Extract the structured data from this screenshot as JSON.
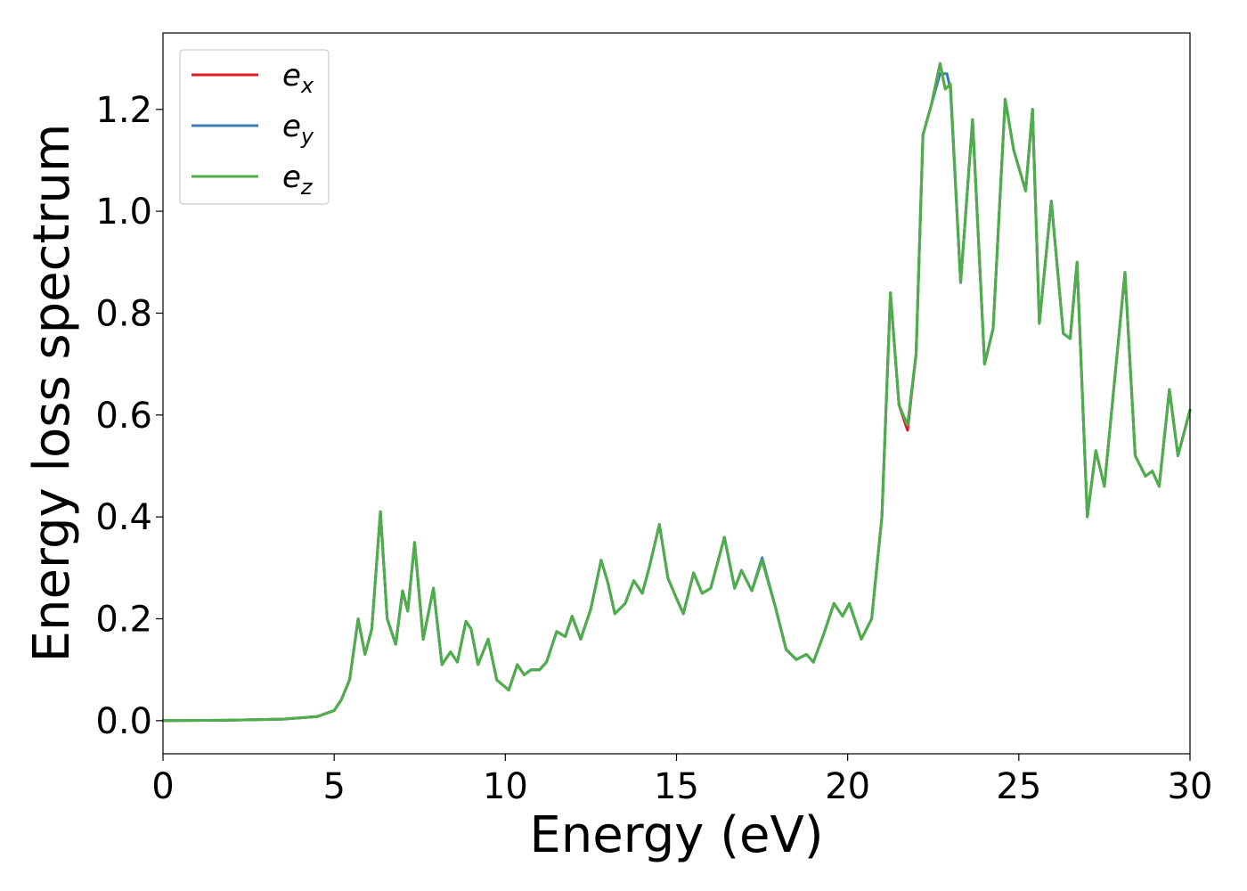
{
  "chart_data": {
    "type": "line",
    "title": "",
    "xlabel": "Energy (eV)",
    "ylabel": "Energy loss spectrum",
    "xlim": [
      0,
      30
    ],
    "ylim": [
      -0.065,
      1.35
    ],
    "xticks": [
      0,
      5,
      10,
      15,
      20,
      25,
      30
    ],
    "xtick_labels": [
      "0",
      "5",
      "10",
      "15",
      "20",
      "25",
      "30"
    ],
    "yticks": [
      0.0,
      0.2,
      0.4,
      0.6,
      0.8,
      1.0,
      1.2
    ],
    "ytick_labels": [
      "0.0",
      "0.2",
      "0.4",
      "0.6",
      "0.8",
      "1.0",
      "1.2"
    ],
    "grid": false,
    "legend_position": "top-left",
    "series": [
      {
        "name": "e",
        "subscript": "x",
        "color": "#e41a1c",
        "points": [
          [
            0,
            0
          ],
          [
            2,
            0.001
          ],
          [
            3.5,
            0.003
          ],
          [
            4.5,
            0.008
          ],
          [
            5.0,
            0.02
          ],
          [
            5.2,
            0.04
          ],
          [
            5.45,
            0.08
          ],
          [
            5.7,
            0.2
          ],
          [
            5.9,
            0.13
          ],
          [
            6.1,
            0.18
          ],
          [
            6.35,
            0.41
          ],
          [
            6.55,
            0.2
          ],
          [
            6.8,
            0.15
          ],
          [
            7.0,
            0.255
          ],
          [
            7.15,
            0.215
          ],
          [
            7.35,
            0.35
          ],
          [
            7.6,
            0.16
          ],
          [
            7.9,
            0.26
          ],
          [
            8.15,
            0.11
          ],
          [
            8.4,
            0.135
          ],
          [
            8.6,
            0.115
          ],
          [
            8.85,
            0.195
          ],
          [
            9.0,
            0.18
          ],
          [
            9.2,
            0.11
          ],
          [
            9.5,
            0.16
          ],
          [
            9.75,
            0.08
          ],
          [
            10.1,
            0.06
          ],
          [
            10.35,
            0.11
          ],
          [
            10.55,
            0.09
          ],
          [
            10.75,
            0.1
          ],
          [
            11.0,
            0.1
          ],
          [
            11.2,
            0.115
          ],
          [
            11.5,
            0.175
          ],
          [
            11.75,
            0.165
          ],
          [
            11.95,
            0.205
          ],
          [
            12.2,
            0.16
          ],
          [
            12.5,
            0.22
          ],
          [
            12.8,
            0.315
          ],
          [
            13.0,
            0.27
          ],
          [
            13.2,
            0.21
          ],
          [
            13.5,
            0.23
          ],
          [
            13.75,
            0.275
          ],
          [
            14.0,
            0.25
          ],
          [
            14.2,
            0.3
          ],
          [
            14.5,
            0.385
          ],
          [
            14.75,
            0.28
          ],
          [
            15.0,
            0.24
          ],
          [
            15.2,
            0.21
          ],
          [
            15.5,
            0.29
          ],
          [
            15.75,
            0.25
          ],
          [
            16.0,
            0.26
          ],
          [
            16.4,
            0.36
          ],
          [
            16.7,
            0.26
          ],
          [
            16.9,
            0.295
          ],
          [
            17.2,
            0.255
          ],
          [
            17.5,
            0.315
          ],
          [
            17.9,
            0.22
          ],
          [
            18.2,
            0.14
          ],
          [
            18.5,
            0.12
          ],
          [
            18.8,
            0.13
          ],
          [
            19.0,
            0.115
          ],
          [
            19.3,
            0.17
          ],
          [
            19.6,
            0.23
          ],
          [
            19.85,
            0.205
          ],
          [
            20.05,
            0.23
          ],
          [
            20.4,
            0.16
          ],
          [
            20.7,
            0.2
          ],
          [
            21.0,
            0.4
          ],
          [
            21.25,
            0.84
          ],
          [
            21.5,
            0.62
          ],
          [
            21.75,
            0.57
          ],
          [
            22.0,
            0.72
          ],
          [
            22.2,
            1.15
          ],
          [
            22.45,
            1.21
          ],
          [
            22.7,
            1.29
          ],
          [
            22.85,
            1.24
          ],
          [
            23.0,
            1.25
          ],
          [
            23.3,
            0.86
          ],
          [
            23.65,
            1.18
          ],
          [
            24.0,
            0.7
          ],
          [
            24.25,
            0.77
          ],
          [
            24.6,
            1.22
          ],
          [
            24.85,
            1.12
          ],
          [
            25.2,
            1.04
          ],
          [
            25.4,
            1.2
          ],
          [
            25.6,
            0.78
          ],
          [
            25.95,
            1.02
          ],
          [
            26.3,
            0.76
          ],
          [
            26.5,
            0.75
          ],
          [
            26.7,
            0.9
          ],
          [
            27.0,
            0.4
          ],
          [
            27.25,
            0.53
          ],
          [
            27.5,
            0.46
          ],
          [
            28.1,
            0.88
          ],
          [
            28.4,
            0.52
          ],
          [
            28.7,
            0.48
          ],
          [
            28.9,
            0.49
          ],
          [
            29.1,
            0.46
          ],
          [
            29.4,
            0.65
          ],
          [
            29.65,
            0.52
          ],
          [
            30.0,
            0.61
          ]
        ]
      },
      {
        "name": "e",
        "subscript": "y",
        "color": "#377eb8",
        "points": [
          [
            0,
            0
          ],
          [
            2,
            0.001
          ],
          [
            3.5,
            0.003
          ],
          [
            4.5,
            0.008
          ],
          [
            5.0,
            0.02
          ],
          [
            5.2,
            0.04
          ],
          [
            5.45,
            0.08
          ],
          [
            5.7,
            0.2
          ],
          [
            5.9,
            0.13
          ],
          [
            6.1,
            0.18
          ],
          [
            6.35,
            0.41
          ],
          [
            6.55,
            0.2
          ],
          [
            6.8,
            0.15
          ],
          [
            7.0,
            0.255
          ],
          [
            7.15,
            0.215
          ],
          [
            7.35,
            0.35
          ],
          [
            7.6,
            0.16
          ],
          [
            7.9,
            0.26
          ],
          [
            8.15,
            0.11
          ],
          [
            8.4,
            0.135
          ],
          [
            8.6,
            0.115
          ],
          [
            8.85,
            0.195
          ],
          [
            9.0,
            0.18
          ],
          [
            9.2,
            0.11
          ],
          [
            9.5,
            0.16
          ],
          [
            9.75,
            0.08
          ],
          [
            10.1,
            0.06
          ],
          [
            10.35,
            0.11
          ],
          [
            10.55,
            0.09
          ],
          [
            10.75,
            0.1
          ],
          [
            11.0,
            0.1
          ],
          [
            11.2,
            0.115
          ],
          [
            11.5,
            0.175
          ],
          [
            11.75,
            0.165
          ],
          [
            11.95,
            0.205
          ],
          [
            12.2,
            0.16
          ],
          [
            12.5,
            0.22
          ],
          [
            12.8,
            0.315
          ],
          [
            13.0,
            0.27
          ],
          [
            13.2,
            0.21
          ],
          [
            13.5,
            0.23
          ],
          [
            13.75,
            0.275
          ],
          [
            14.0,
            0.25
          ],
          [
            14.2,
            0.3
          ],
          [
            14.5,
            0.385
          ],
          [
            14.75,
            0.28
          ],
          [
            15.0,
            0.24
          ],
          [
            15.2,
            0.21
          ],
          [
            15.5,
            0.29
          ],
          [
            15.75,
            0.25
          ],
          [
            16.0,
            0.26
          ],
          [
            16.4,
            0.36
          ],
          [
            16.7,
            0.26
          ],
          [
            16.9,
            0.295
          ],
          [
            17.2,
            0.255
          ],
          [
            17.5,
            0.32
          ],
          [
            17.9,
            0.22
          ],
          [
            18.2,
            0.14
          ],
          [
            18.5,
            0.12
          ],
          [
            18.8,
            0.13
          ],
          [
            19.0,
            0.115
          ],
          [
            19.3,
            0.17
          ],
          [
            19.6,
            0.23
          ],
          [
            19.85,
            0.205
          ],
          [
            20.05,
            0.23
          ],
          [
            20.4,
            0.16
          ],
          [
            20.7,
            0.2
          ],
          [
            21.0,
            0.4
          ],
          [
            21.25,
            0.84
          ],
          [
            21.5,
            0.62
          ],
          [
            21.75,
            0.58
          ],
          [
            22.0,
            0.72
          ],
          [
            22.2,
            1.15
          ],
          [
            22.45,
            1.21
          ],
          [
            22.7,
            1.27
          ],
          [
            22.9,
            1.27
          ],
          [
            23.0,
            1.24
          ],
          [
            23.3,
            0.86
          ],
          [
            23.65,
            1.18
          ],
          [
            24.0,
            0.7
          ],
          [
            24.25,
            0.77
          ],
          [
            24.6,
            1.22
          ],
          [
            24.85,
            1.12
          ],
          [
            25.2,
            1.04
          ],
          [
            25.4,
            1.2
          ],
          [
            25.6,
            0.78
          ],
          [
            25.95,
            1.02
          ],
          [
            26.3,
            0.76
          ],
          [
            26.5,
            0.75
          ],
          [
            26.7,
            0.9
          ],
          [
            27.0,
            0.4
          ],
          [
            27.25,
            0.53
          ],
          [
            27.5,
            0.46
          ],
          [
            28.1,
            0.88
          ],
          [
            28.4,
            0.52
          ],
          [
            28.7,
            0.48
          ],
          [
            28.9,
            0.49
          ],
          [
            29.1,
            0.46
          ],
          [
            29.4,
            0.65
          ],
          [
            29.65,
            0.52
          ],
          [
            30.0,
            0.61
          ]
        ]
      },
      {
        "name": "e",
        "subscript": "z",
        "color": "#4daf4a",
        "points": [
          [
            0,
            0
          ],
          [
            2,
            0.001
          ],
          [
            3.5,
            0.003
          ],
          [
            4.5,
            0.008
          ],
          [
            5.0,
            0.02
          ],
          [
            5.2,
            0.04
          ],
          [
            5.45,
            0.08
          ],
          [
            5.7,
            0.2
          ],
          [
            5.9,
            0.13
          ],
          [
            6.1,
            0.18
          ],
          [
            6.35,
            0.41
          ],
          [
            6.55,
            0.2
          ],
          [
            6.8,
            0.15
          ],
          [
            7.0,
            0.255
          ],
          [
            7.15,
            0.215
          ],
          [
            7.35,
            0.35
          ],
          [
            7.6,
            0.16
          ],
          [
            7.9,
            0.26
          ],
          [
            8.15,
            0.11
          ],
          [
            8.4,
            0.135
          ],
          [
            8.6,
            0.115
          ],
          [
            8.85,
            0.195
          ],
          [
            9.0,
            0.18
          ],
          [
            9.2,
            0.11
          ],
          [
            9.5,
            0.16
          ],
          [
            9.75,
            0.08
          ],
          [
            10.1,
            0.06
          ],
          [
            10.35,
            0.11
          ],
          [
            10.55,
            0.09
          ],
          [
            10.75,
            0.1
          ],
          [
            11.0,
            0.1
          ],
          [
            11.2,
            0.115
          ],
          [
            11.5,
            0.175
          ],
          [
            11.75,
            0.165
          ],
          [
            11.95,
            0.205
          ],
          [
            12.2,
            0.16
          ],
          [
            12.5,
            0.22
          ],
          [
            12.8,
            0.315
          ],
          [
            13.0,
            0.27
          ],
          [
            13.2,
            0.21
          ],
          [
            13.5,
            0.23
          ],
          [
            13.75,
            0.275
          ],
          [
            14.0,
            0.25
          ],
          [
            14.2,
            0.3
          ],
          [
            14.5,
            0.385
          ],
          [
            14.75,
            0.28
          ],
          [
            15.0,
            0.24
          ],
          [
            15.2,
            0.21
          ],
          [
            15.5,
            0.29
          ],
          [
            15.75,
            0.25
          ],
          [
            16.0,
            0.26
          ],
          [
            16.4,
            0.36
          ],
          [
            16.7,
            0.26
          ],
          [
            16.9,
            0.295
          ],
          [
            17.2,
            0.255
          ],
          [
            17.5,
            0.315
          ],
          [
            17.9,
            0.22
          ],
          [
            18.2,
            0.14
          ],
          [
            18.5,
            0.12
          ],
          [
            18.8,
            0.13
          ],
          [
            19.0,
            0.115
          ],
          [
            19.3,
            0.17
          ],
          [
            19.6,
            0.23
          ],
          [
            19.85,
            0.205
          ],
          [
            20.05,
            0.23
          ],
          [
            20.4,
            0.16
          ],
          [
            20.7,
            0.2
          ],
          [
            21.0,
            0.4
          ],
          [
            21.25,
            0.84
          ],
          [
            21.5,
            0.62
          ],
          [
            21.75,
            0.58
          ],
          [
            22.0,
            0.72
          ],
          [
            22.2,
            1.15
          ],
          [
            22.45,
            1.21
          ],
          [
            22.7,
            1.29
          ],
          [
            22.85,
            1.24
          ],
          [
            23.0,
            1.25
          ],
          [
            23.3,
            0.86
          ],
          [
            23.65,
            1.18
          ],
          [
            24.0,
            0.7
          ],
          [
            24.25,
            0.77
          ],
          [
            24.6,
            1.22
          ],
          [
            24.85,
            1.12
          ],
          [
            25.2,
            1.04
          ],
          [
            25.4,
            1.2
          ],
          [
            25.6,
            0.78
          ],
          [
            25.95,
            1.02
          ],
          [
            26.3,
            0.76
          ],
          [
            26.5,
            0.75
          ],
          [
            26.7,
            0.9
          ],
          [
            27.0,
            0.4
          ],
          [
            27.25,
            0.53
          ],
          [
            27.5,
            0.46
          ],
          [
            28.1,
            0.88
          ],
          [
            28.4,
            0.52
          ],
          [
            28.7,
            0.48
          ],
          [
            28.9,
            0.49
          ],
          [
            29.1,
            0.46
          ],
          [
            29.4,
            0.65
          ],
          [
            29.65,
            0.52
          ],
          [
            30.0,
            0.61
          ]
        ]
      }
    ]
  }
}
